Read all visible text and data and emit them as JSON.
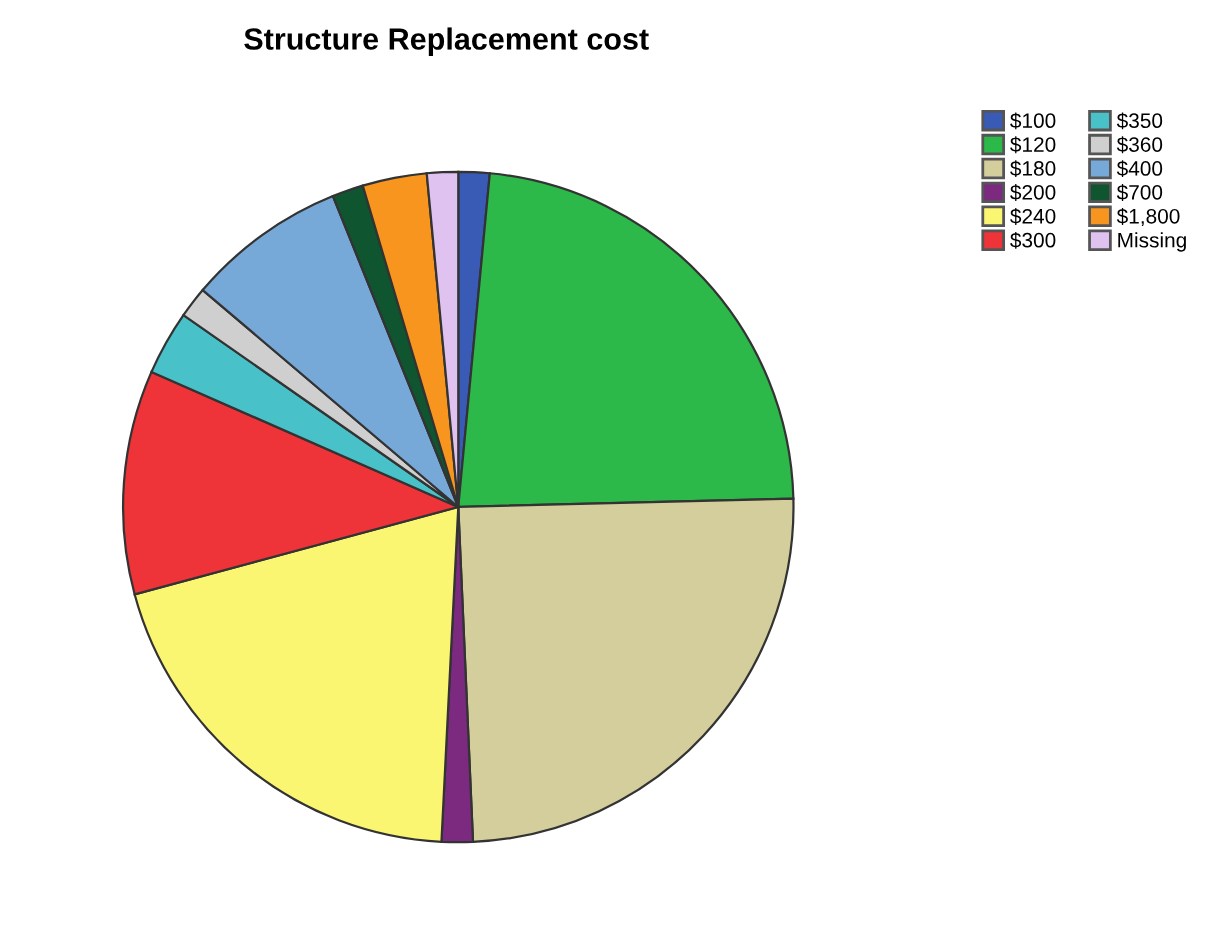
{
  "chart_data": {
    "type": "pie",
    "title": "Structure Replacement cost",
    "categories": [
      "$100",
      "$120",
      "$180",
      "$200",
      "$240",
      "$300",
      "$350",
      "$360",
      "$400",
      "$700",
      "$1,800",
      "Missing"
    ],
    "values": [
      1.5,
      23.1,
      24.7,
      1.5,
      20.0,
      10.8,
      3.1,
      1.5,
      7.7,
      1.5,
      3.1,
      1.5
    ],
    "colors": [
      "#3a5bb5",
      "#2db84a",
      "#d3ce9b",
      "#7b2a80",
      "#fbf672",
      "#ee3339",
      "#48c1c8",
      "#cfcfcf",
      "#77a9d8",
      "#0e5530",
      "#f7951e",
      "#dfc2f0"
    ],
    "legend": "top right"
  }
}
